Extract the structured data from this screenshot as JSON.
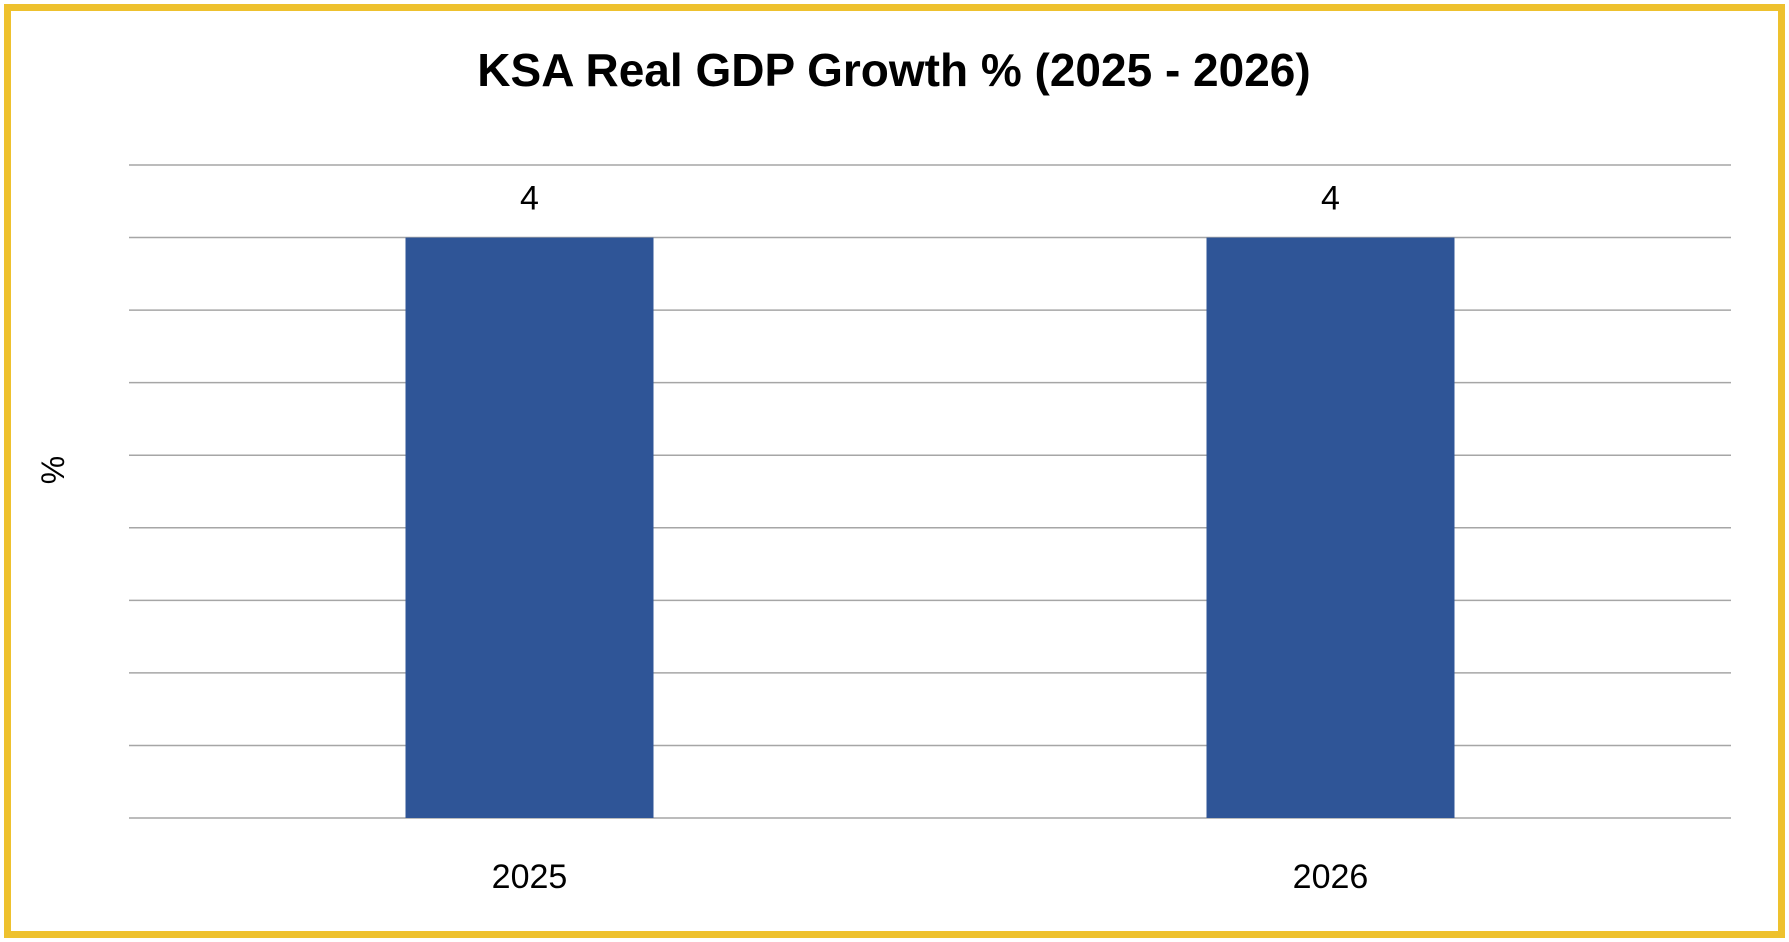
{
  "chart_data": {
    "type": "bar",
    "title": "KSA Real GDP Growth % (2025 - 2026)",
    "xlabel": "",
    "ylabel": "%",
    "categories": [
      "2025",
      "2026"
    ],
    "values": [
      4,
      4
    ],
    "data_labels": [
      "4",
      "4"
    ],
    "ylim": [
      0,
      4.5
    ],
    "grid_step": 0.5,
    "grid": true,
    "y_tick_labels_shown": false,
    "legend": "none",
    "colors": {
      "bar": "#2F5597",
      "frame": "#EEC12E",
      "grid": "#A6A6A6"
    }
  }
}
